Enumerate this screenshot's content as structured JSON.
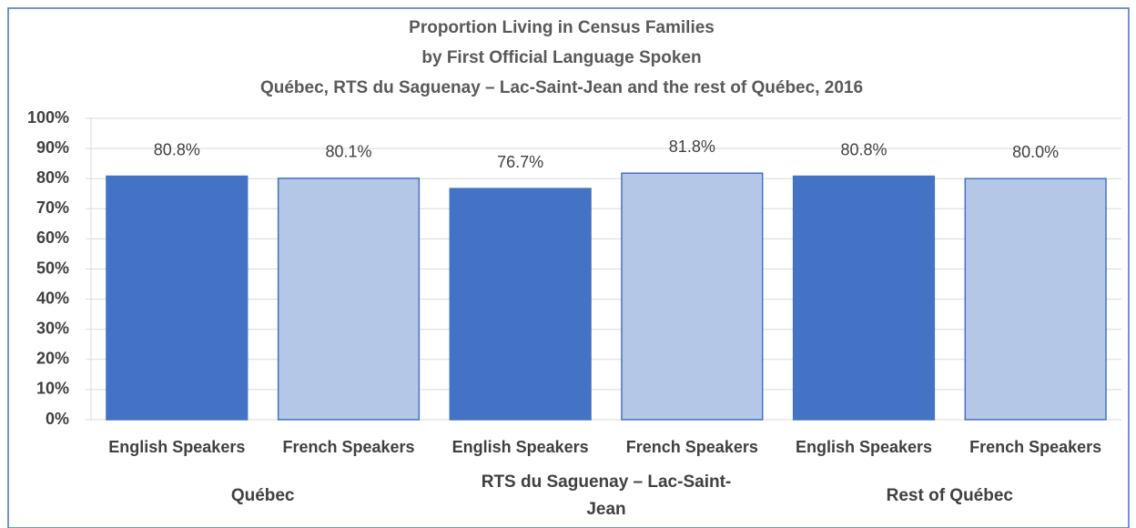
{
  "chart_data": {
    "type": "bar",
    "title": [
      "Proportion Living in Census Families",
      "by First Official Language Spoken",
      "Québec, RTS du Saguenay – Lac-Saint-Jean and the rest of Québec, 2016"
    ],
    "categories": [
      "Québec",
      "RTS du Saguenay – Lac-Saint-Jean",
      "Rest of Québec"
    ],
    "series": [
      {
        "name": "English Speakers",
        "color": "#4472c4",
        "values": [
          80.8,
          76.7,
          80.8
        ],
        "value_labels": [
          "80.8%",
          "76.7%",
          "80.8%"
        ]
      },
      {
        "name": "French Speakers",
        "color": "#b4c7e7",
        "values": [
          80.1,
          81.8,
          80.0
        ],
        "value_labels": [
          "80.1%",
          "81.8%",
          "80.0%"
        ]
      }
    ],
    "edge_color": "#4472c4",
    "ylim": [
      0,
      100
    ],
    "yticks": [
      {
        "value": 0,
        "label": "0%"
      },
      {
        "value": 10,
        "label": "10%"
      },
      {
        "value": 20,
        "label": "20%"
      },
      {
        "value": 30,
        "label": "30%"
      },
      {
        "value": 40,
        "label": "40%"
      },
      {
        "value": 50,
        "label": "50%"
      },
      {
        "value": 60,
        "label": "60%"
      },
      {
        "value": 70,
        "label": "70%"
      },
      {
        "value": 80,
        "label": "80%"
      },
      {
        "value": 90,
        "label": "90%"
      },
      {
        "value": 100,
        "label": "100%"
      }
    ],
    "grid": true
  }
}
